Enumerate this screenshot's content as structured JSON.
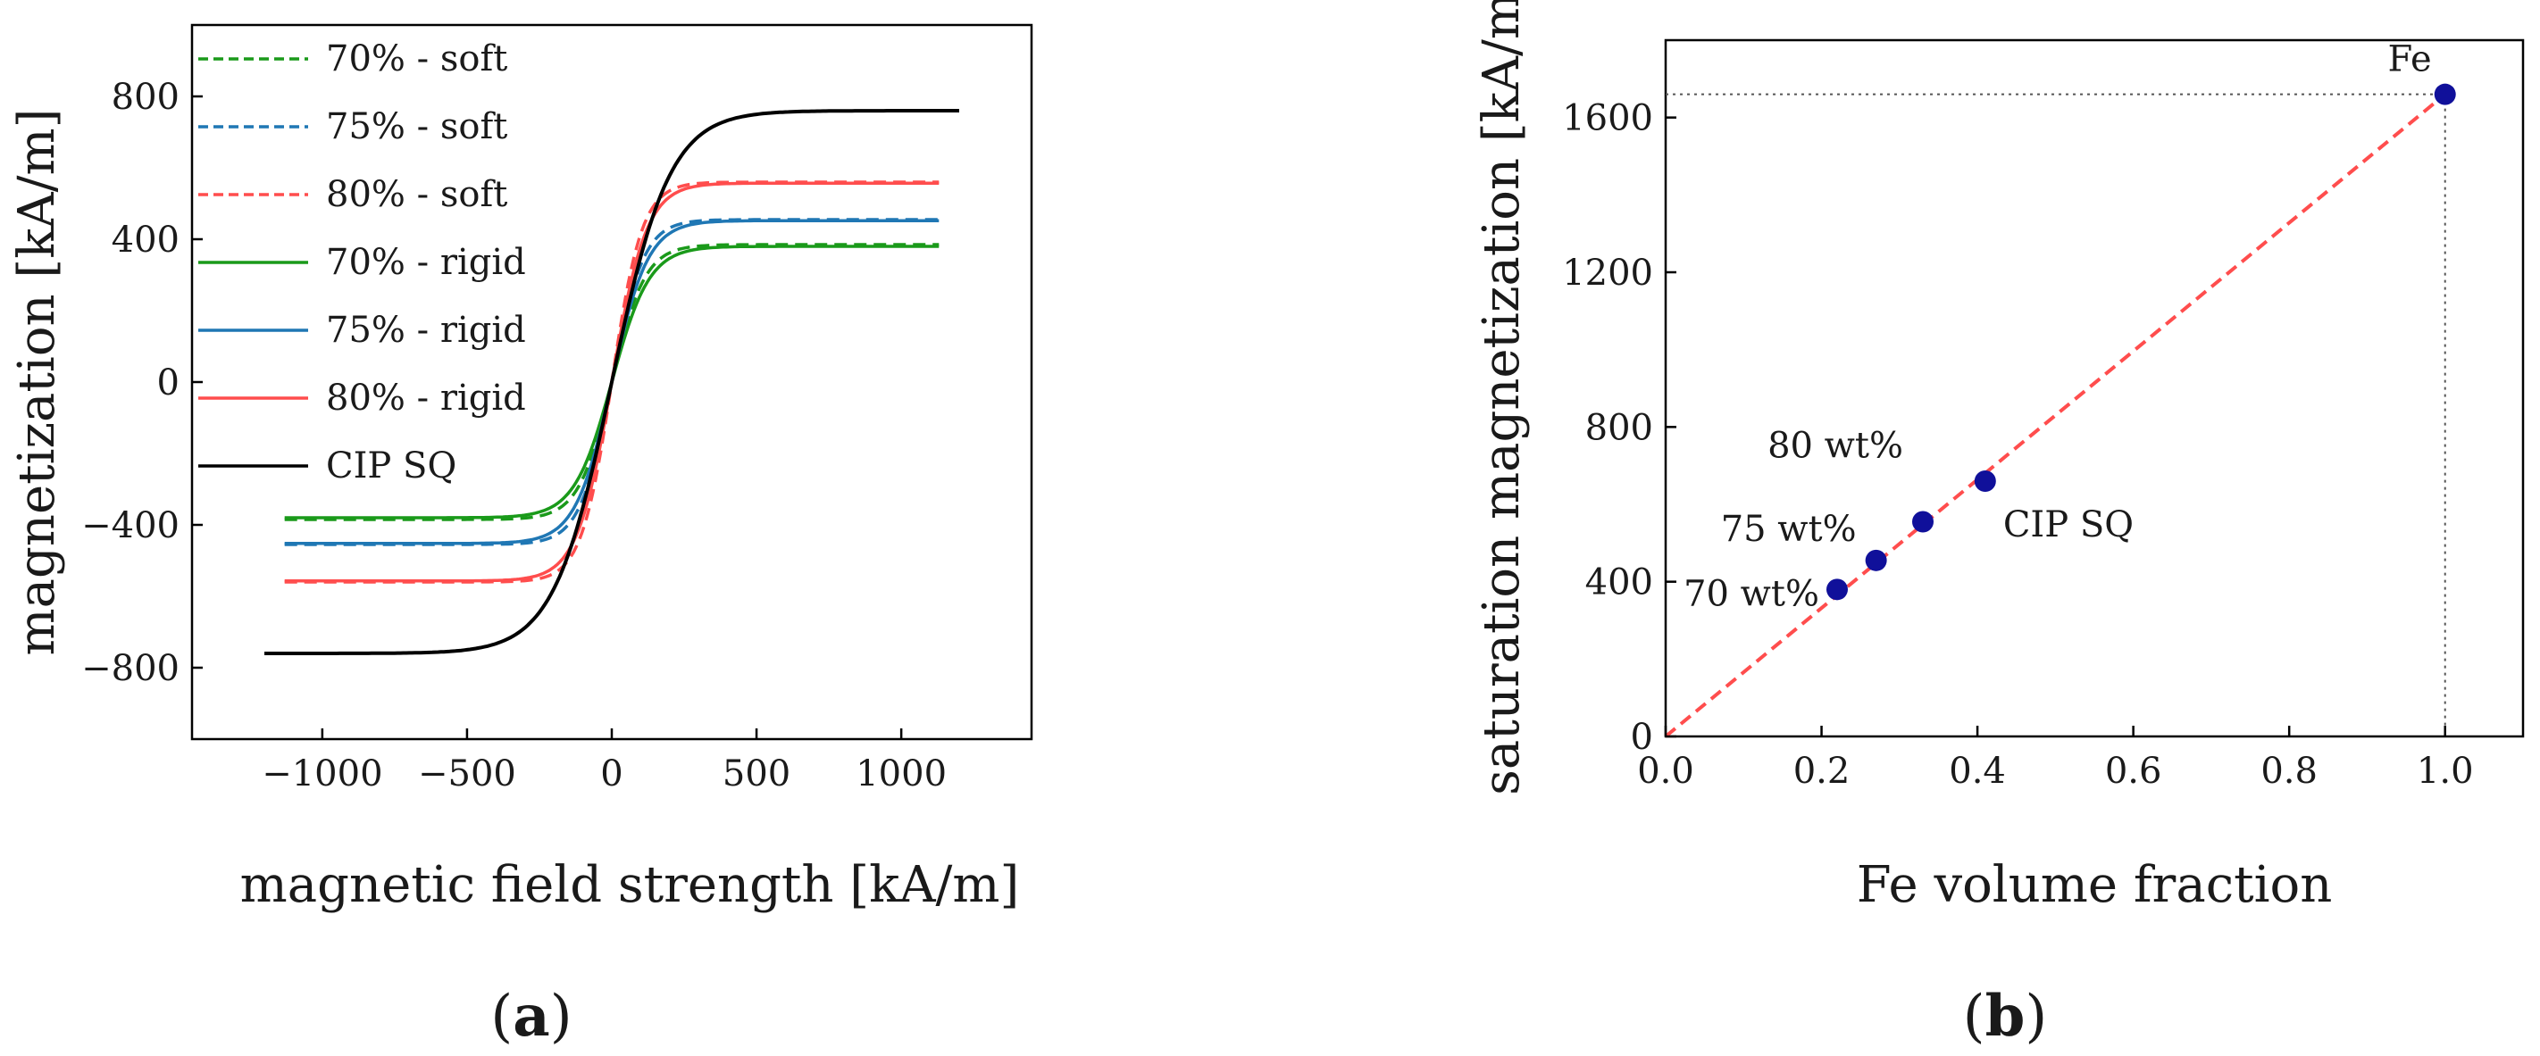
{
  "chart_data": [
    {
      "panel": "a",
      "type": "line",
      "panel_label_prefix": "(",
      "panel_label": "a",
      "panel_label_suffix": ")",
      "xlabel": "magnetic field strength [kA/m]",
      "ylabel": "magnetization [kA/m]",
      "xlim": [
        -1450,
        1450
      ],
      "ylim": [
        -1000,
        1000
      ],
      "xticks": [
        -1000,
        -500,
        0,
        500,
        1000
      ],
      "xtick_labels": [
        "−1000",
        "−500",
        "0",
        "500",
        "1000"
      ],
      "yticks": [
        -800,
        -400,
        0,
        400,
        800
      ],
      "ytick_labels": [
        "−800",
        "−400",
        "0",
        "400",
        "800"
      ],
      "legend_position": "top-left",
      "series": [
        {
          "name": "70% - soft",
          "style": "dashed",
          "color": "#1a9a1a",
          "Ms": 385,
          "a": 115,
          "xmax": 1130
        },
        {
          "name": "75% - soft",
          "style": "dashed",
          "color": "#1f77b4",
          "Ms": 455,
          "a": 110,
          "xmax": 1130
        },
        {
          "name": "80% - soft",
          "style": "dashed",
          "color": "#ff4d4d",
          "Ms": 560,
          "a": 105,
          "xmax": 1130
        },
        {
          "name": "70% - rigid",
          "style": "solid",
          "color": "#1a9a1a",
          "Ms": 380,
          "a": 130,
          "xmax": 1130
        },
        {
          "name": "75% - rigid",
          "style": "solid",
          "color": "#1f77b4",
          "Ms": 452,
          "a": 125,
          "xmax": 1130
        },
        {
          "name": "80% - rigid",
          "style": "solid",
          "color": "#ff4d4d",
          "Ms": 557,
          "a": 120,
          "xmax": 1130
        },
        {
          "name": "CIP SQ",
          "style": "solid",
          "color": "#000000",
          "Ms": 760,
          "a": 200,
          "xmax": 1200
        }
      ]
    },
    {
      "panel": "b",
      "type": "scatter",
      "panel_label_prefix": "(",
      "panel_label": "b",
      "panel_label_suffix": ")",
      "xlabel": "Fe volume fraction",
      "ylabel": "saturation magnetization [kA/m]",
      "xlim": [
        0,
        1.1
      ],
      "ylim": [
        0,
        1800
      ],
      "xticks": [
        0,
        0.2,
        0.4,
        0.6,
        0.8,
        1.0
      ],
      "xtick_labels": [
        "0.0",
        "0.2",
        "0.4",
        "0.6",
        "0.8",
        "1.0"
      ],
      "yticks": [
        0,
        400,
        800,
        1200,
        1600
      ],
      "ytick_labels": [
        "0",
        "400",
        "800",
        "1200",
        "1600"
      ],
      "points": [
        {
          "label": "70 wt%",
          "x": 0.22,
          "y": 380
        },
        {
          "label": "75 wt%",
          "x": 0.27,
          "y": 455
        },
        {
          "label": "80 wt%",
          "x": 0.33,
          "y": 555
        },
        {
          "label": "CIP SQ",
          "x": 0.41,
          "y": 660
        },
        {
          "label": "Fe",
          "x": 1.0,
          "y": 1660
        }
      ],
      "fit_line": {
        "style": "dashed",
        "color": "#ff4d4d",
        "from": [
          0,
          0
        ],
        "to": [
          1.0,
          1660
        ]
      },
      "reference_lines": {
        "style": "dotted",
        "x": 1.0,
        "y": 1660
      },
      "point_color": "#10109a"
    }
  ]
}
